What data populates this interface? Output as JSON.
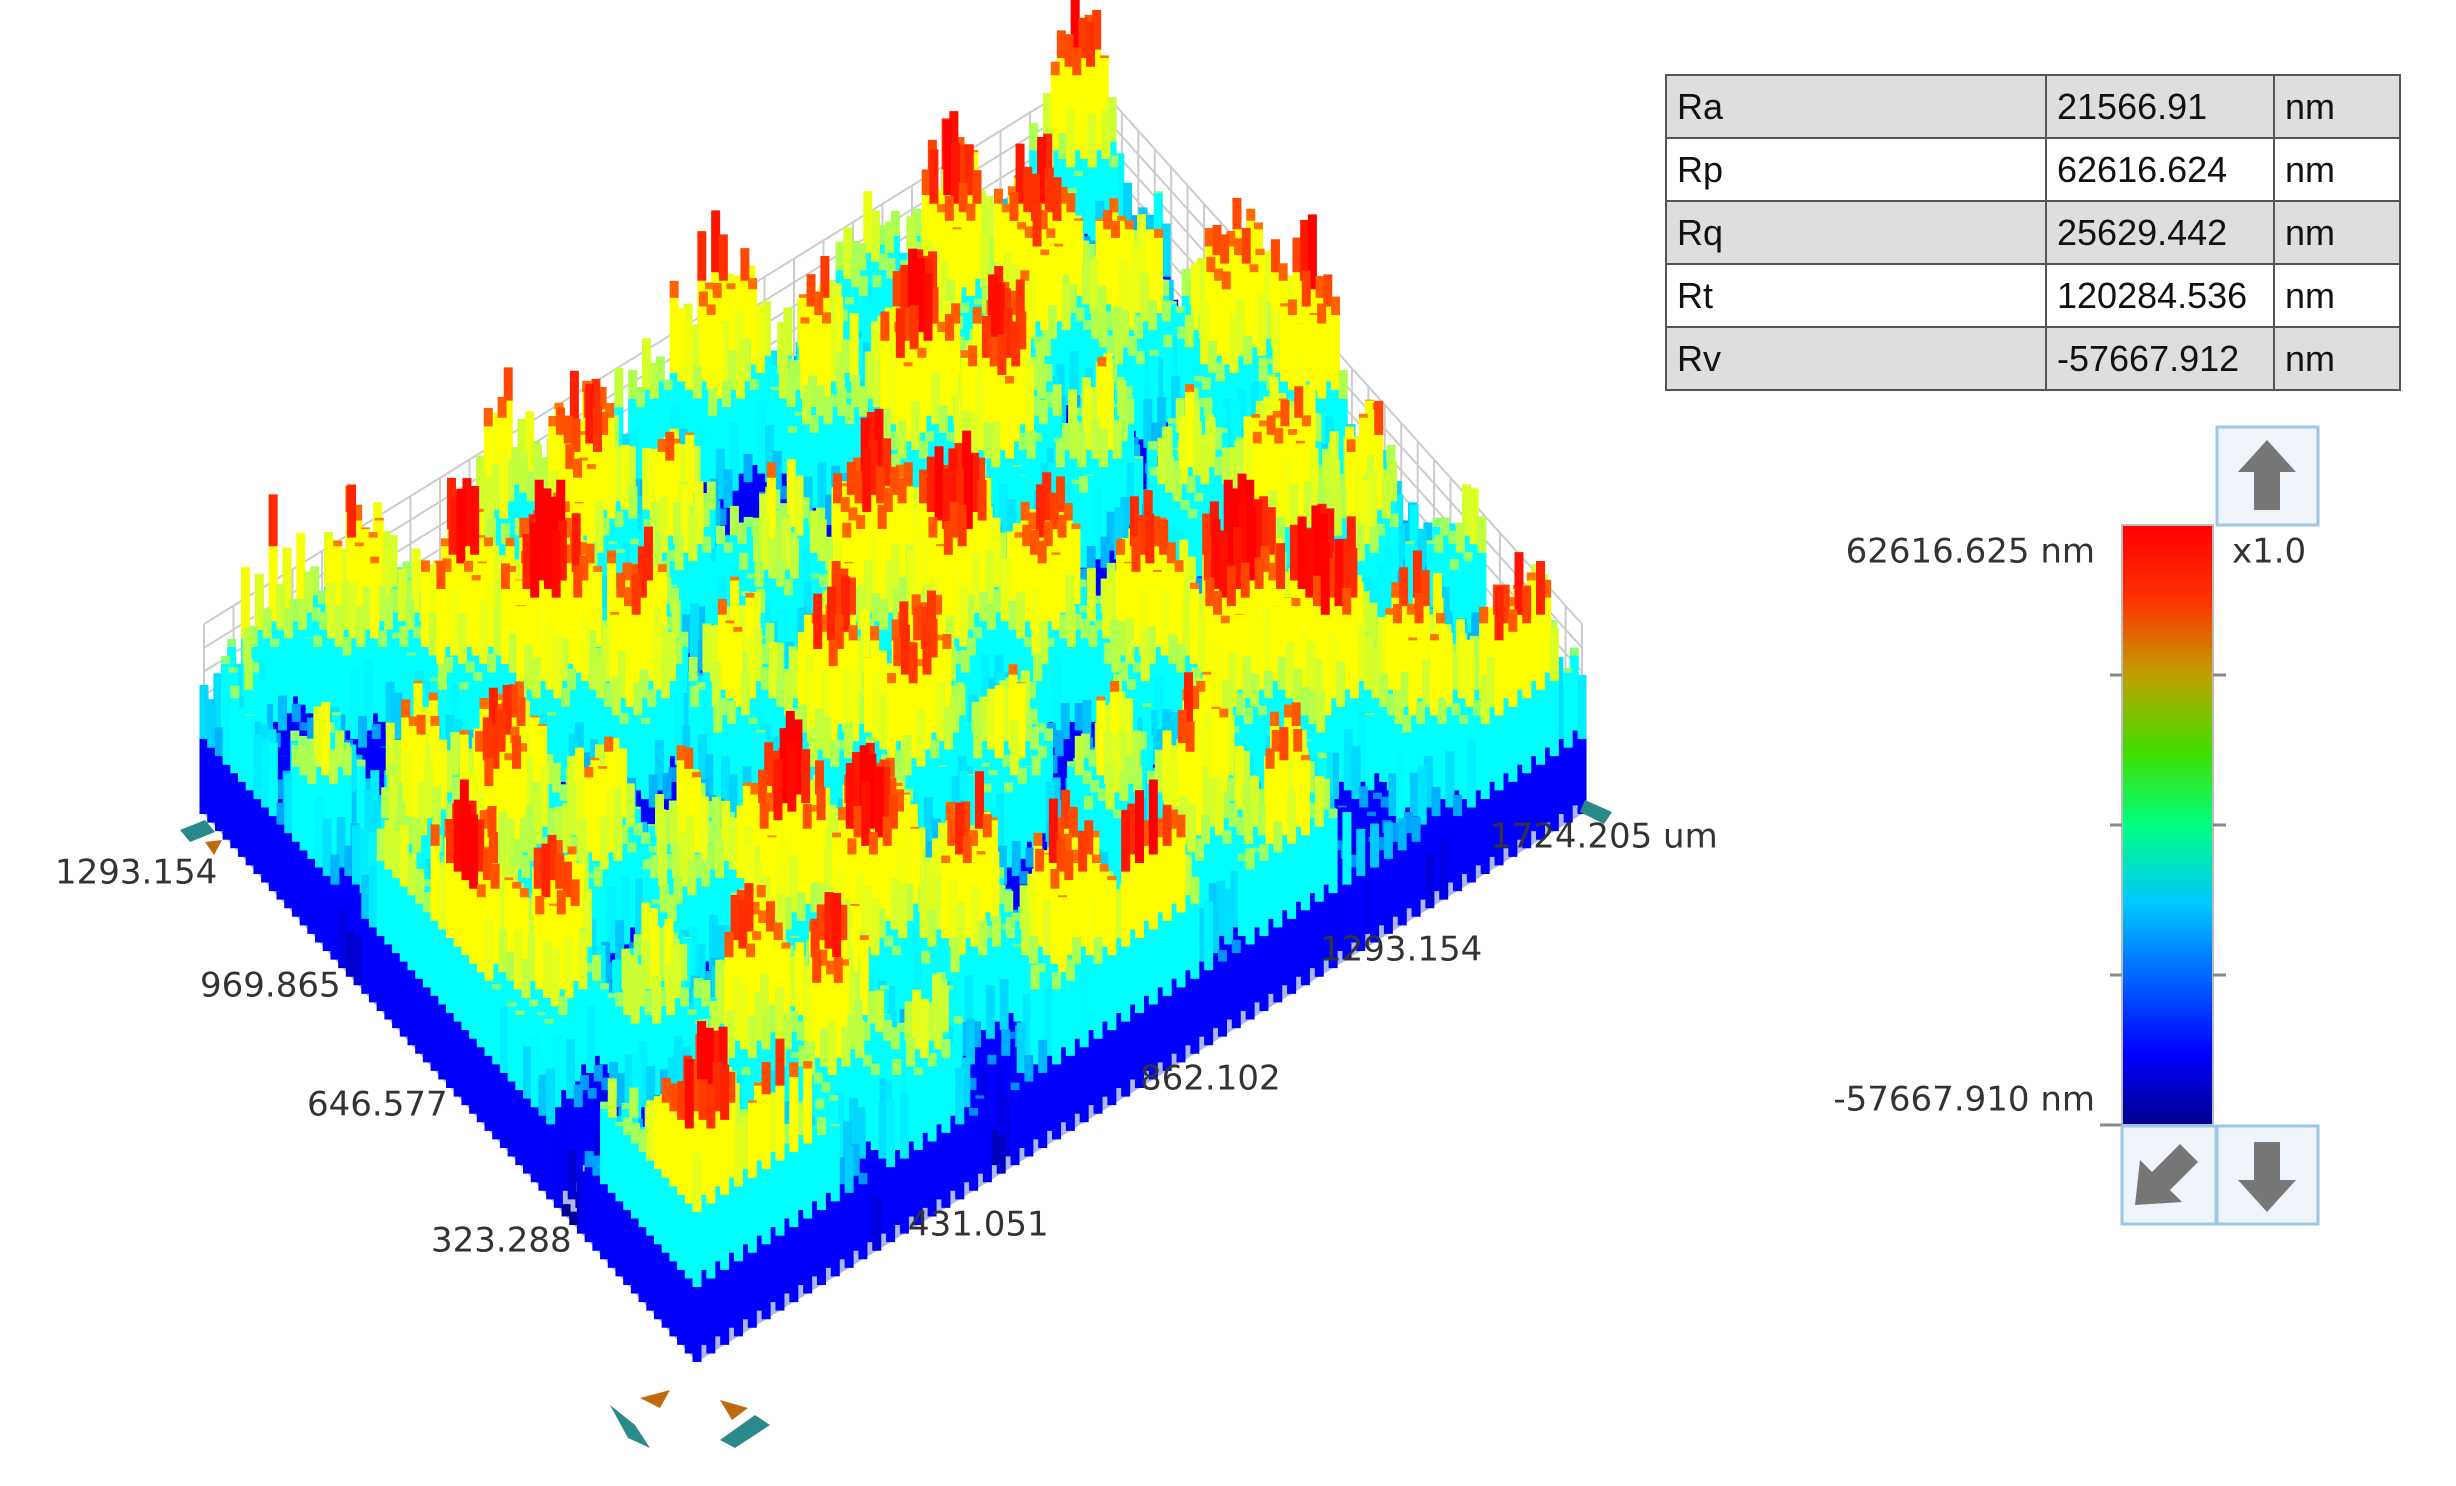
{
  "measurements": {
    "rows": [
      [
        "Ra",
        "21566.91",
        "nm"
      ],
      [
        "Rp",
        "62616.624",
        "nm"
      ],
      [
        "Rq",
        "25629.442",
        "nm"
      ],
      [
        "Rt",
        "120284.536",
        "nm"
      ],
      [
        "Rv",
        "-57667.912",
        "nm"
      ]
    ]
  },
  "colorbar": {
    "max_label": "62616.625 nm",
    "min_label": "-57667.910 nm",
    "zoom": "x1.0"
  },
  "axes": {
    "y_labels": [
      "1293.154",
      "969.865",
      "646.577",
      "323.288"
    ],
    "x_labels": [
      "431.051",
      "862.102",
      "1293.154",
      "1724.205 um"
    ]
  }
}
